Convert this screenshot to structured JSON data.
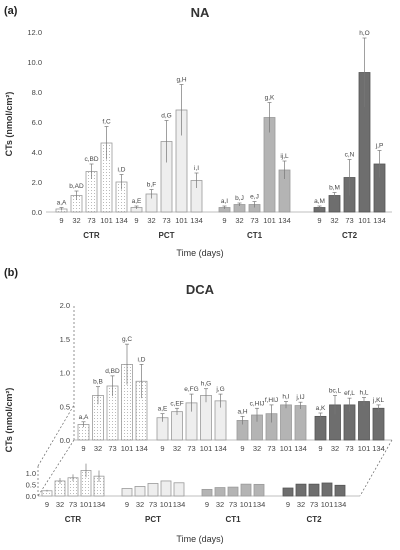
{
  "chart_data": [
    {
      "panel_label": "(a)",
      "type": "bar",
      "title": "NA",
      "ylabel": "CTs (nmol/cm²)",
      "xlabel": "Time (days)",
      "ylim": [
        0,
        12
      ],
      "yticks": [
        "0.0",
        "2.0",
        "4.0",
        "6.0",
        "8.0",
        "10.0",
        "12.0"
      ],
      "grid": false,
      "x_ticks": [
        "9",
        "32",
        "73",
        "101",
        "134"
      ],
      "groups": [
        {
          "name": "CTR",
          "fill": "dotted-white",
          "values": [
            0.2,
            1.1,
            2.7,
            4.6,
            2.0
          ],
          "errors": [
            0.1,
            0.3,
            0.5,
            1.1,
            0.5
          ],
          "labels": [
            "a,A",
            "b,AD",
            "c,BD",
            "f,C",
            "i,D"
          ]
        },
        {
          "name": "PCT",
          "fill": "#eeeeee",
          "values": [
            0.3,
            1.2,
            4.7,
            6.8,
            2.1
          ],
          "errors": [
            0.1,
            0.3,
            1.4,
            1.7,
            0.5
          ],
          "labels": [
            "a,E",
            "b,F",
            "d,G",
            "g,H",
            "i,I"
          ]
        },
        {
          "name": "CT1",
          "fill": "#b4b4b4",
          "values": [
            0.3,
            0.5,
            0.5,
            6.3,
            2.8
          ],
          "errors": [
            0.1,
            0.1,
            0.2,
            1.0,
            0.6
          ],
          "labels": [
            "a,I",
            "b,J",
            "e,J",
            "g,K",
            "ij,L"
          ]
        },
        {
          "name": "CT2",
          "fill": "#6e6e6e",
          "values": [
            0.3,
            1.1,
            2.3,
            9.3,
            3.2
          ],
          "errors": [
            0.1,
            0.2,
            1.2,
            2.3,
            0.9
          ],
          "labels": [
            "a,M",
            "b,M",
            "c,N",
            "h,O",
            "j,P"
          ]
        }
      ]
    },
    {
      "panel_label": "(b)",
      "type": "bar",
      "title": "DCA",
      "ylabel": "CTs (nmol/cm²)",
      "xlabel": "Time (days)",
      "ylim": [
        0,
        2
      ],
      "yticks": [
        "0.0",
        "0.5",
        "1.0",
        "1.5",
        "2.0"
      ],
      "grid": false,
      "x_ticks": [
        "9",
        "32",
        "73",
        "101",
        "134"
      ],
      "groups": [
        {
          "name": "CTR",
          "fill": "dotted-white",
          "values": [
            0.23,
            0.66,
            0.8,
            1.12,
            0.87
          ],
          "errors": [
            0.04,
            0.13,
            0.15,
            0.3,
            0.25
          ],
          "labels": [
            "a,A",
            "b,B",
            "d,BD",
            "g,C",
            "i,D"
          ]
        },
        {
          "name": "PCT",
          "fill": "#eeeeee",
          "values": [
            0.33,
            0.42,
            0.55,
            0.66,
            0.58
          ],
          "errors": [
            0.06,
            0.05,
            0.13,
            0.1,
            0.1
          ],
          "labels": [
            "a,E",
            "c,EF",
            "e,FG",
            "h,G",
            "j,G"
          ]
        },
        {
          "name": "CT1",
          "fill": "#b4b4b4",
          "values": [
            0.29,
            0.37,
            0.39,
            0.52,
            0.51
          ],
          "errors": [
            0.06,
            0.1,
            0.13,
            0.05,
            0.05
          ],
          "labels": [
            "a,H",
            "c,HIJ",
            "f,HIJ",
            "h,I",
            "j,IJ"
          ]
        },
        {
          "name": "CT2",
          "fill": "#6e6e6e",
          "values": [
            0.35,
            0.52,
            0.52,
            0.57,
            0.47
          ],
          "errors": [
            0.05,
            0.14,
            0.1,
            0.06,
            0.05
          ],
          "labels": [
            "a,K",
            "bc,L",
            "ef,L",
            "h,L",
            "j,KL"
          ]
        }
      ]
    }
  ]
}
